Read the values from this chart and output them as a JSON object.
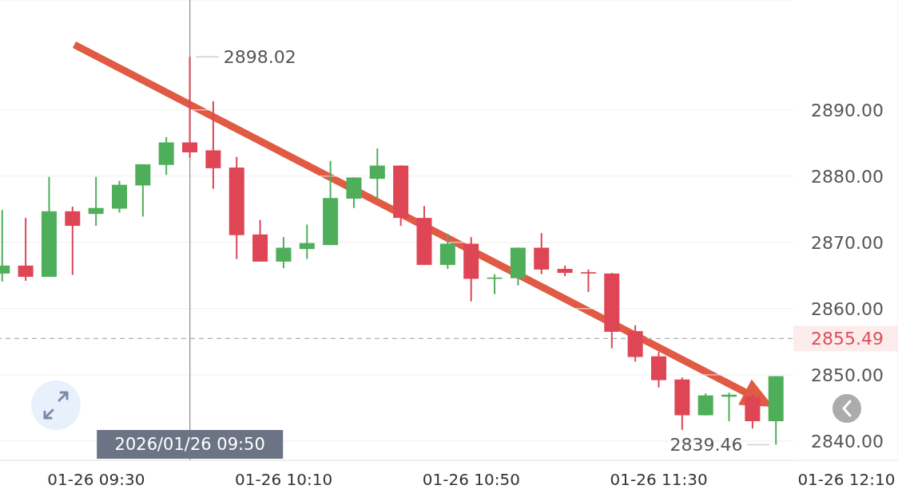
{
  "chart_data": {
    "type": "candlestick",
    "x": [
      "2026-01-26T09:10",
      "2026-01-26T09:15",
      "2026-01-26T09:20",
      "2026-01-26T09:25",
      "2026-01-26T09:30",
      "2026-01-26T09:35",
      "2026-01-26T09:40",
      "2026-01-26T09:45",
      "2026-01-26T09:50",
      "2026-01-26T09:55",
      "2026-01-26T10:00",
      "2026-01-26T10:05",
      "2026-01-26T10:10",
      "2026-01-26T10:15",
      "2026-01-26T10:20",
      "2026-01-26T10:25",
      "2026-01-26T10:30",
      "2026-01-26T10:35",
      "2026-01-26T10:40",
      "2026-01-26T10:45",
      "2026-01-26T10:50",
      "2026-01-26T10:55",
      "2026-01-26T11:00",
      "2026-01-26T11:05",
      "2026-01-26T11:10",
      "2026-01-26T11:15",
      "2026-01-26T11:20",
      "2026-01-26T11:25",
      "2026-01-26T11:30",
      "2026-01-26T11:35",
      "2026-01-26T11:40",
      "2026-01-26T11:45",
      "2026-01-26T11:50",
      "2026-01-26T11:55"
    ],
    "ohlc": [
      [
        2865.3,
        2874.9,
        2864.1,
        2866.5
      ],
      [
        2866.5,
        2873.7,
        2864.2,
        2864.8
      ],
      [
        2864.8,
        2879.9,
        2864.8,
        2874.7
      ],
      [
        2874.7,
        2875.4,
        2865.1,
        2872.5
      ],
      [
        2874.3,
        2879.9,
        2872.5,
        2875.2
      ],
      [
        2875.1,
        2879.3,
        2874.5,
        2878.7
      ],
      [
        2878.6,
        2881.8,
        2873.9,
        2881.8
      ],
      [
        2881.7,
        2885.9,
        2880.2,
        2885.1
      ],
      [
        2885.1,
        2898.02,
        2882.8,
        2883.6
      ],
      [
        2883.9,
        2891.3,
        2878.1,
        2881.2
      ],
      [
        2881.3,
        2882.9,
        2867.5,
        2871.1
      ],
      [
        2871.2,
        2873.4,
        2867.1,
        2867.1
      ],
      [
        2867.1,
        2870.8,
        2866.1,
        2869.2
      ],
      [
        2869.0,
        2872.7,
        2867.5,
        2869.9
      ],
      [
        2869.6,
        2882.3,
        2869.6,
        2876.7
      ],
      [
        2876.6,
        2879.8,
        2875.2,
        2879.8
      ],
      [
        2879.6,
        2884.2,
        2876.5,
        2881.6
      ],
      [
        2881.6,
        2881.6,
        2872.5,
        2873.7
      ],
      [
        2873.7,
        2875.5,
        2866.6,
        2866.6
      ],
      [
        2866.6,
        2871.3,
        2866.0,
        2869.8
      ],
      [
        2869.8,
        2870.8,
        2861.1,
        2864.5
      ],
      [
        2864.5,
        2865.2,
        2862.2,
        2864.7
      ],
      [
        2864.6,
        2869.2,
        2863.5,
        2869.2
      ],
      [
        2869.2,
        2871.4,
        2865.2,
        2865.9
      ],
      [
        2866.0,
        2866.5,
        2864.9,
        2865.4
      ],
      [
        2865.5,
        2865.9,
        2862.5,
        2865.3
      ],
      [
        2865.3,
        2865.4,
        2854.0,
        2856.5
      ],
      [
        2856.6,
        2857.5,
        2852.0,
        2852.7
      ],
      [
        2852.8,
        2853.5,
        2848.1,
        2849.2
      ],
      [
        2849.3,
        2849.6,
        2841.7,
        2843.9
      ],
      [
        2843.9,
        2847.2,
        2843.9,
        2846.9
      ],
      [
        2846.7,
        2847.3,
        2843.0,
        2847.0
      ],
      [
        2846.7,
        2847.1,
        2841.9,
        2843.0
      ],
      [
        2843.0,
        2849.8,
        2839.46,
        2849.8
      ]
    ],
    "colors": [
      "#4fae5a",
      "#de4655",
      "#4fae5a",
      "#de4655",
      "#4fae5a",
      "#4fae5a",
      "#4fae5a",
      "#4fae5a",
      "#de4655",
      "#de4655",
      "#de4655",
      "#de4655",
      "#4fae5a",
      "#4fae5a",
      "#4fae5a",
      "#4fae5a",
      "#4fae5a",
      "#de4655",
      "#de4655",
      "#4fae5a",
      "#de4655",
      "#4fae5a",
      "#4fae5a",
      "#de4655",
      "#de4655",
      "#de4655",
      "#de4655",
      "#de4655",
      "#de4655",
      "#de4655",
      "#4fae5a",
      "#4fae5a",
      "#de4655",
      "#4fae5a"
    ],
    "xlim": [
      "2026-01-26T09:09:30",
      "2026-01-26T12:21"
    ],
    "xticks": [
      {
        "value": "2026-01-26T09:30",
        "label": "01-26 09:30"
      },
      {
        "value": "2026-01-26T10:10",
        "label": "01-26 10:10"
      },
      {
        "value": "2026-01-26T10:50",
        "label": "01-26 10:50"
      },
      {
        "value": "2026-01-26T11:30",
        "label": "01-26 11:30"
      },
      {
        "value": "2026-01-26T12:10",
        "label": "01-26 12:10"
      }
    ],
    "ylim": [
      2837.1,
      2906.6
    ],
    "yticks": [
      {
        "value": 2840,
        "label": "2840.00"
      },
      {
        "value": 2850,
        "label": "2850.00"
      },
      {
        "value": 2860,
        "label": "2860.00"
      },
      {
        "value": 2870,
        "label": "2870.00"
      },
      {
        "value": 2880,
        "label": "2880.00"
      },
      {
        "value": 2890,
        "label": "2890.00"
      }
    ],
    "grid": "y",
    "ref_lines": [
      {
        "axis": "y",
        "value": 2855.49,
        "label": "2855.49",
        "color": "#b0b0b0",
        "line_style": "dashed"
      },
      {
        "axis": "x",
        "value": "2026-01-26T09:50",
        "label": "2026/01/26 09:50",
        "color": "#8a8a8a",
        "line_style": "solid"
      }
    ],
    "annotations": [
      {
        "text": "2898.02",
        "x": "2026-01-26T09:50",
        "y": 2898.02
      },
      {
        "text": "2839.46",
        "x": "2026-01-26T11:55",
        "y": 2839.46
      }
    ]
  }
}
